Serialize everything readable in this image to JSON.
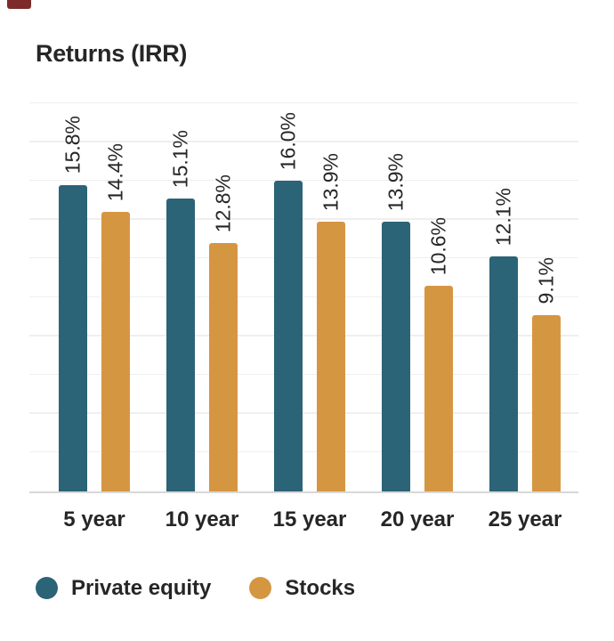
{
  "page": {
    "corner_badge_color": "#7d2a2a"
  },
  "chart_data": {
    "type": "bar",
    "title": "Returns (IRR)",
    "categories": [
      "5 year",
      "10 year",
      "15 year",
      "20 year",
      "25 year"
    ],
    "series": [
      {
        "name": "Private equity",
        "color": "#2b6377",
        "values": [
          15.8,
          15.1,
          16.0,
          13.9,
          12.1
        ]
      },
      {
        "name": "Stocks",
        "color": "#d59642",
        "values": [
          14.4,
          12.8,
          13.9,
          10.6,
          9.1
        ]
      }
    ],
    "value_labels": [
      [
        "15.8%",
        "15.1%",
        "16.0%",
        "13.9%",
        "12.1%"
      ],
      [
        "14.4%",
        "12.8%",
        "13.9%",
        "10.6%",
        "9.1%"
      ]
    ],
    "value_label_rotation_deg": 90,
    "xlabel": "",
    "ylabel": "",
    "ylim": [
      0,
      20
    ],
    "gridline_step": 2,
    "grid": true,
    "y_axis_ticks_visible": false,
    "legend_position": "bottom-left",
    "text_color": "#262626",
    "gridline_color": "#efefef",
    "axis_line_color": "#d8d8d8"
  }
}
